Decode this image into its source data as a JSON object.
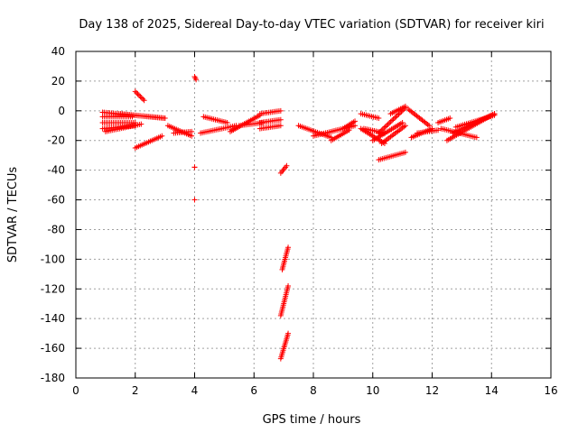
{
  "chart_data": {
    "type": "scatter",
    "title": "Day 138 of 2025, Sidereal Day-to-day VTEC variation (SDTVAR) for receiver kiri",
    "xlabel": "GPS time / hours",
    "ylabel": "SDTVAR / TECUs",
    "xlim": [
      0,
      16
    ],
    "ylim": [
      -180,
      40
    ],
    "xticks": [
      "0",
      "2",
      "4",
      "6",
      "8",
      "10",
      "12",
      "14",
      "16"
    ],
    "yticks": [
      "40",
      "20",
      "0",
      "-20",
      "-40",
      "-60",
      "-80",
      "-100",
      "-120",
      "-140",
      "-160",
      "-180"
    ],
    "grid": true,
    "marker": "+",
    "marker_color": "#ff0000",
    "segments": [
      {
        "x": [
          0.9,
          3.0
        ],
        "y": [
          -1,
          -5
        ]
      },
      {
        "x": [
          0.9,
          1.9
        ],
        "y": [
          -4,
          -4
        ]
      },
      {
        "x": [
          0.9,
          2.0
        ],
        "y": [
          -8,
          -8
        ]
      },
      {
        "x": [
          0.9,
          2.0
        ],
        "y": [
          -12,
          -10
        ]
      },
      {
        "x": [
          1.0,
          2.2
        ],
        "y": [
          -14,
          -9
        ]
      },
      {
        "x": [
          1.5,
          3.0
        ],
        "y": [
          -2,
          -5
        ]
      },
      {
        "x": [
          2.0,
          2.3
        ],
        "y": [
          13,
          7
        ]
      },
      {
        "x": [
          2.0,
          2.9
        ],
        "y": [
          -25,
          -17
        ]
      },
      {
        "x": [
          3.1,
          3.9
        ],
        "y": [
          -10,
          -17
        ]
      },
      {
        "x": [
          3.3,
          3.9
        ],
        "y": [
          -15,
          -14
        ]
      },
      {
        "x": [
          4.0,
          4.05
        ],
        "y": [
          23,
          21
        ]
      },
      {
        "x": [
          4.0,
          4.0
        ],
        "y": [
          -38,
          -38
        ]
      },
      {
        "x": [
          4.0,
          4.0
        ],
        "y": [
          -60,
          -60
        ]
      },
      {
        "x": [
          4.3,
          5.1
        ],
        "y": [
          -4,
          -8
        ]
      },
      {
        "x": [
          4.2,
          5.4
        ],
        "y": [
          -15,
          -10
        ]
      },
      {
        "x": [
          5.2,
          6.2
        ],
        "y": [
          -14,
          -3
        ]
      },
      {
        "x": [
          5.5,
          6.3
        ],
        "y": [
          -10,
          -8
        ]
      },
      {
        "x": [
          6.2,
          6.9
        ],
        "y": [
          -2,
          0
        ]
      },
      {
        "x": [
          6.2,
          6.9
        ],
        "y": [
          -8,
          -6
        ]
      },
      {
        "x": [
          6.2,
          6.9
        ],
        "y": [
          -12,
          -10
        ]
      },
      {
        "x": [
          6.9,
          7.1
        ],
        "y": [
          -42,
          -37
        ]
      },
      {
        "x": [
          6.95,
          7.15
        ],
        "y": [
          -107,
          -92
        ]
      },
      {
        "x": [
          6.9,
          7.15
        ],
        "y": [
          -138,
          -118
        ]
      },
      {
        "x": [
          6.9,
          7.15
        ],
        "y": [
          -167,
          -150
        ]
      },
      {
        "x": [
          7.5,
          8.6
        ],
        "y": [
          -10,
          -18
        ]
      },
      {
        "x": [
          8.0,
          9.4
        ],
        "y": [
          -17,
          -10
        ]
      },
      {
        "x": [
          8.6,
          9.2
        ],
        "y": [
          -20,
          -13
        ]
      },
      {
        "x": [
          9.0,
          9.4
        ],
        "y": [
          -12,
          -7
        ]
      },
      {
        "x": [
          9.6,
          10.2
        ],
        "y": [
          -2,
          -5
        ]
      },
      {
        "x": [
          9.6,
          10.4
        ],
        "y": [
          -12,
          -22
        ]
      },
      {
        "x": [
          9.7,
          10.4
        ],
        "y": [
          -12,
          -15
        ]
      },
      {
        "x": [
          10.0,
          11.0
        ],
        "y": [
          -20,
          -8
        ]
      },
      {
        "x": [
          10.2,
          11.1
        ],
        "y": [
          -15,
          2
        ]
      },
      {
        "x": [
          10.6,
          11.1
        ],
        "y": [
          -2,
          3
        ]
      },
      {
        "x": [
          10.3,
          11.1
        ],
        "y": [
          -22,
          -10
        ]
      },
      {
        "x": [
          10.2,
          11.1
        ],
        "y": [
          -33,
          -28
        ]
      },
      {
        "x": [
          11.2,
          11.9
        ],
        "y": [
          1,
          -10
        ]
      },
      {
        "x": [
          11.3,
          12.0
        ],
        "y": [
          -18,
          -12
        ]
      },
      {
        "x": [
          11.5,
          12.2
        ],
        "y": [
          -15,
          -13
        ]
      },
      {
        "x": [
          12.2,
          12.6
        ],
        "y": [
          -8,
          -5
        ]
      },
      {
        "x": [
          12.3,
          13.5
        ],
        "y": [
          -12,
          -18
        ]
      },
      {
        "x": [
          12.5,
          14.0
        ],
        "y": [
          -20,
          -3
        ]
      },
      {
        "x": [
          12.7,
          14.1
        ],
        "y": [
          -15,
          -2
        ]
      },
      {
        "x": [
          12.8,
          14.1
        ],
        "y": [
          -11,
          -3
        ]
      },
      {
        "x": [
          13.5,
          14.1
        ],
        "y": [
          -8,
          -2
        ]
      }
    ]
  }
}
